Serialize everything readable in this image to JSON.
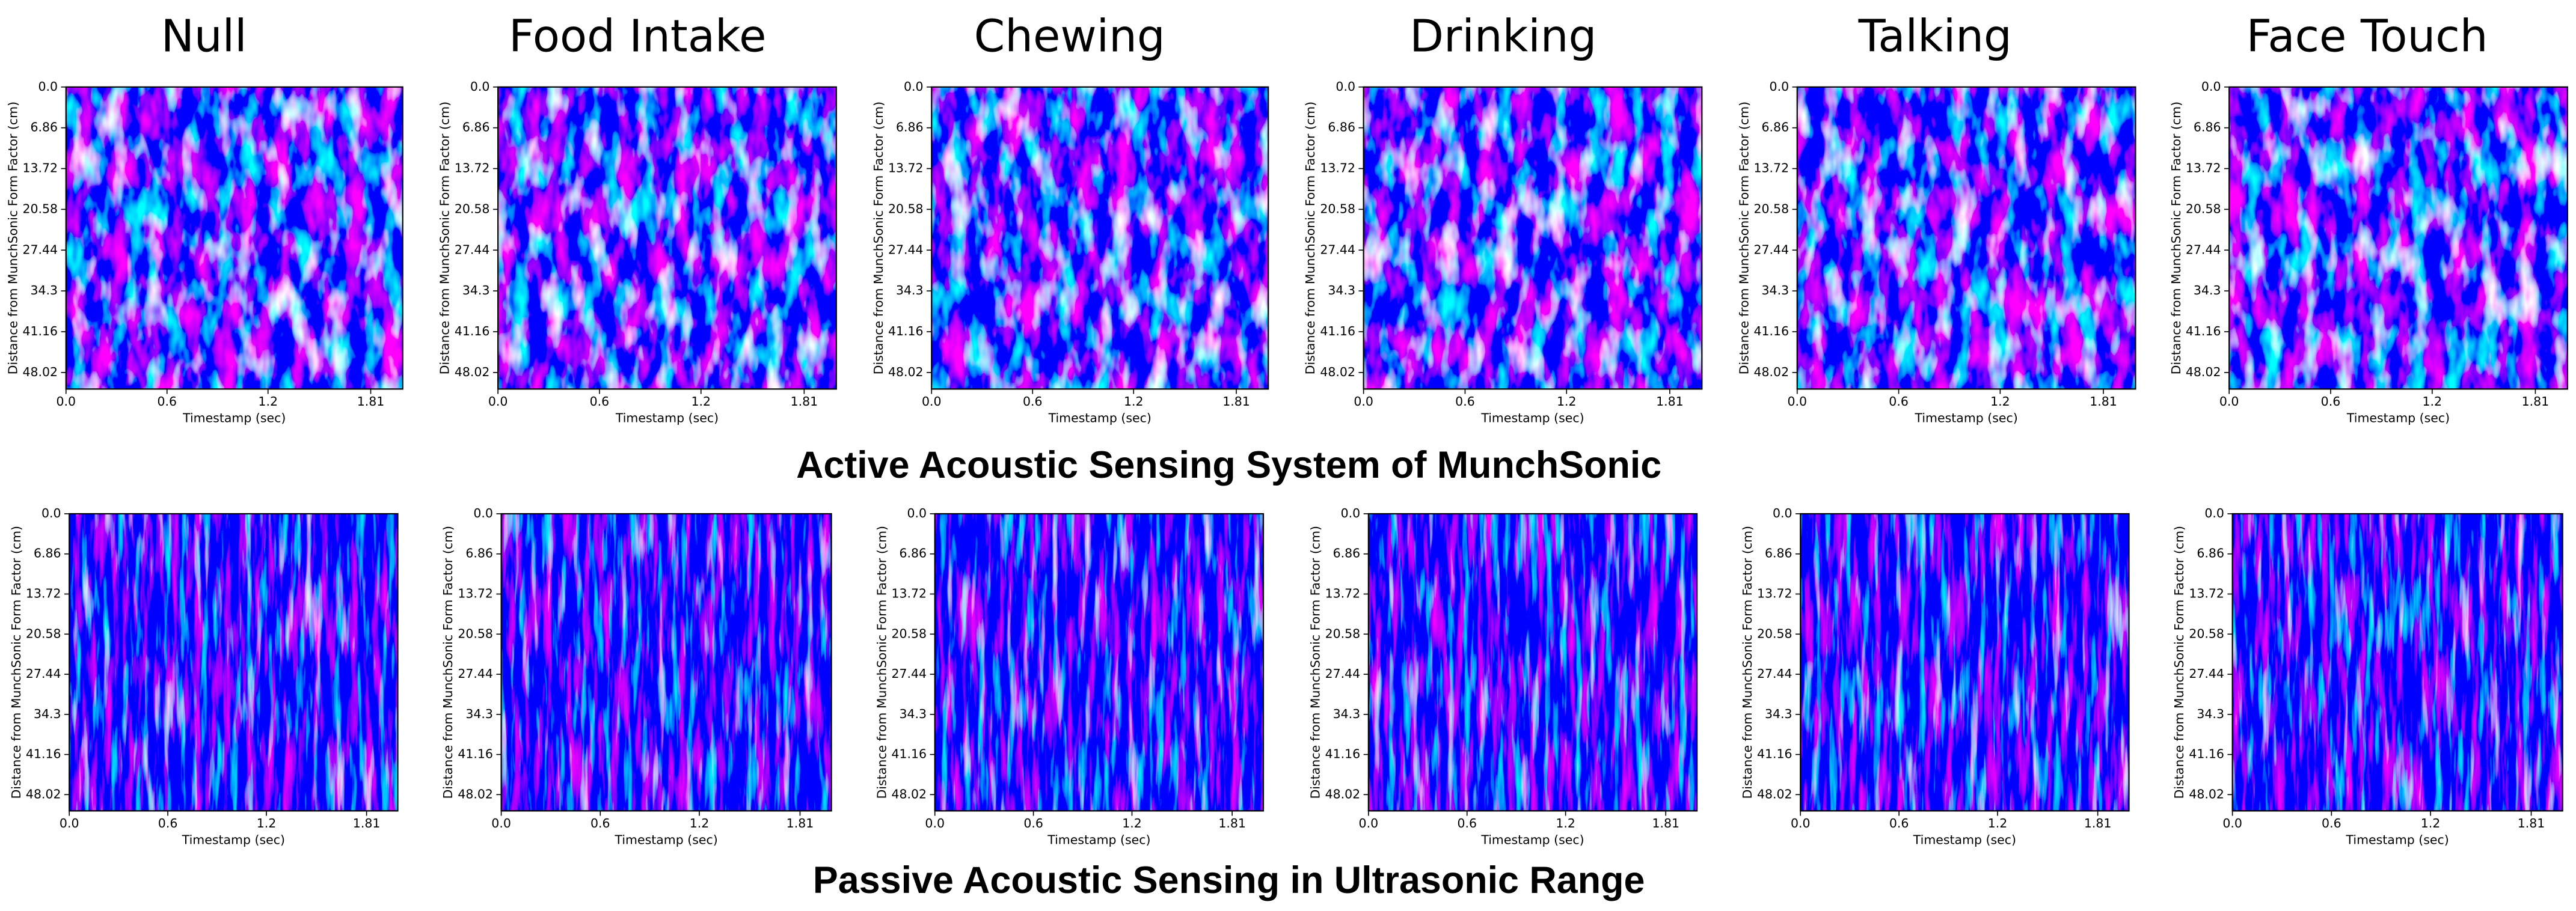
{
  "panel_titles": [
    "Null",
    "Food Intake",
    "Chewing",
    "Drinking",
    "Talking",
    "Face Touch"
  ],
  "row_titles": [
    "Active Acoustic Sensing System of MunchSonic",
    "Passive Acoustic Sensing in Ultrasonic Range"
  ],
  "chart_data": [
    {
      "type": "heatmap",
      "xlabel": "Timestamp (sec)",
      "ylabel": "Distance from MunchSonic Form Factor (cm)",
      "xlim": [
        0,
        2.0
      ],
      "xticks": [
        {
          "value": 0,
          "label": "0.0"
        },
        0.6,
        1.2,
        1.81
      ],
      "ylim": [
        50.8,
        0
      ],
      "yticks": [
        {
          "value": 0,
          "label": "0.0"
        },
        6.86,
        13.72,
        20.58,
        27.44,
        34.3,
        41.16,
        48.02
      ]
    },
    {
      "type": "heatmap",
      "xlabel": "Timestamp (sec)",
      "ylabel": "Distance from MunchSonic Form Factor (cm)",
      "xlim": [
        0,
        2.0
      ],
      "xticks": [
        {
          "value": 0,
          "label": "0.0"
        },
        0.6,
        1.2,
        1.81
      ],
      "ylim": [
        50.8,
        0
      ],
      "yticks": [
        {
          "value": 0,
          "label": "0.0"
        },
        6.86,
        13.72,
        20.58,
        27.44,
        34.3,
        41.16,
        48.02
      ]
    },
    {
      "type": "heatmap",
      "xlabel": "Timestamp (sec)",
      "ylabel": "Distance from MunchSonic Form Factor (cm)",
      "xlim": [
        0,
        2.0
      ],
      "xticks": [
        {
          "value": 0,
          "label": "0.0"
        },
        0.6,
        1.2,
        1.81
      ],
      "ylim": [
        50.8,
        0
      ],
      "yticks": [
        {
          "value": 0,
          "label": "0.0"
        },
        6.86,
        13.72,
        20.58,
        27.44,
        34.3,
        41.16,
        48.02
      ]
    },
    {
      "type": "heatmap",
      "xlabel": "Timestamp (sec)",
      "ylabel": "Distance from MunchSonic Form Factor (cm)",
      "xlim": [
        0,
        2.0
      ],
      "xticks": [
        {
          "value": 0,
          "label": "0.0"
        },
        0.6,
        1.2,
        1.81
      ],
      "ylim": [
        50.8,
        0
      ],
      "yticks": [
        {
          "value": 0,
          "label": "0.0"
        },
        6.86,
        13.72,
        20.58,
        27.44,
        34.3,
        41.16,
        48.02
      ]
    },
    {
      "type": "heatmap",
      "xlabel": "Timestamp (sec)",
      "ylabel": "Distance from MunchSonic Form Factor (cm)",
      "xlim": [
        0,
        2.0
      ],
      "xticks": [
        {
          "value": 0,
          "label": "0.0"
        },
        0.6,
        1.2,
        1.81
      ],
      "ylim": [
        50.8,
        0
      ],
      "yticks": [
        {
          "value": 0,
          "label": "0.0"
        },
        6.86,
        13.72,
        20.58,
        27.44,
        34.3,
        41.16,
        48.02
      ]
    },
    {
      "type": "heatmap",
      "xlabel": "Timestamp (sec)",
      "ylabel": "Distance from MunchSonic Form Factor (cm)",
      "xlim": [
        0,
        2.0
      ],
      "xticks": [
        {
          "value": 0,
          "label": "0.0"
        },
        0.6,
        1.2,
        1.81
      ],
      "ylim": [
        50.8,
        0
      ],
      "yticks": [
        {
          "value": 0,
          "label": "0.0"
        },
        6.86,
        13.72,
        20.58,
        27.44,
        34.3,
        41.16,
        48.02
      ]
    },
    {
      "type": "heatmap",
      "xlabel": "Timestamp (sec)",
      "ylabel": "Distance from MunchSonic Form Factor (cm)",
      "xlim": [
        0,
        2.0
      ],
      "xticks": [
        {
          "value": 0,
          "label": "0.0"
        },
        0.6,
        1.2,
        1.81
      ],
      "ylim": [
        50.8,
        0
      ],
      "yticks": [
        {
          "value": 0,
          "label": "0.0"
        },
        6.86,
        13.72,
        20.58,
        27.44,
        34.3,
        41.16,
        48.02
      ]
    },
    {
      "type": "heatmap",
      "xlabel": "Timestamp (sec)",
      "ylabel": "Distance from MunchSonic Form Factor (cm)",
      "xlim": [
        0,
        2.0
      ],
      "xticks": [
        {
          "value": 0,
          "label": "0.0"
        },
        0.6,
        1.2,
        1.81
      ],
      "ylim": [
        50.8,
        0
      ],
      "yticks": [
        {
          "value": 0,
          "label": "0.0"
        },
        6.86,
        13.72,
        20.58,
        27.44,
        34.3,
        41.16,
        48.02
      ]
    },
    {
      "type": "heatmap",
      "xlabel": "Timestamp (sec)",
      "ylabel": "Distance from MunchSonic Form Factor (cm)",
      "xlim": [
        0,
        2.0
      ],
      "xticks": [
        {
          "value": 0,
          "label": "0.0"
        },
        0.6,
        1.2,
        1.81
      ],
      "ylim": [
        50.8,
        0
      ],
      "yticks": [
        {
          "value": 0,
          "label": "0.0"
        },
        6.86,
        13.72,
        20.58,
        27.44,
        34.3,
        41.16,
        48.02
      ]
    },
    {
      "type": "heatmap",
      "xlabel": "Timestamp (sec)",
      "ylabel": "Distance from MunchSonic Form Factor (cm)",
      "xlim": [
        0,
        2.0
      ],
      "xticks": [
        {
          "value": 0,
          "label": "0.0"
        },
        0.6,
        1.2,
        1.81
      ],
      "ylim": [
        50.8,
        0
      ],
      "yticks": [
        {
          "value": 0,
          "label": "0.0"
        },
        6.86,
        13.72,
        20.58,
        27.44,
        34.3,
        41.16,
        48.02
      ]
    },
    {
      "type": "heatmap",
      "xlabel": "Timestamp (sec)",
      "ylabel": "Distance from MunchSonic Form Factor (cm)",
      "xlim": [
        0,
        2.0
      ],
      "xticks": [
        {
          "value": 0,
          "label": "0.0"
        },
        0.6,
        1.2,
        1.81
      ],
      "ylim": [
        50.8,
        0
      ],
      "yticks": [
        {
          "value": 0,
          "label": "0.0"
        },
        6.86,
        13.72,
        20.58,
        27.44,
        34.3,
        41.16,
        48.02
      ]
    },
    {
      "type": "heatmap",
      "xlabel": "Timestamp (sec)",
      "ylabel": "Distance from MunchSonic Form Factor (cm)",
      "xlim": [
        0,
        2.0
      ],
      "xticks": [
        {
          "value": 0,
          "label": "0.0"
        },
        0.6,
        1.2,
        1.81
      ],
      "ylim": [
        50.8,
        0
      ],
      "yticks": [
        {
          "value": 0,
          "label": "0.0"
        },
        6.86,
        13.72,
        20.58,
        27.44,
        34.3,
        41.16,
        48.02
      ]
    }
  ]
}
